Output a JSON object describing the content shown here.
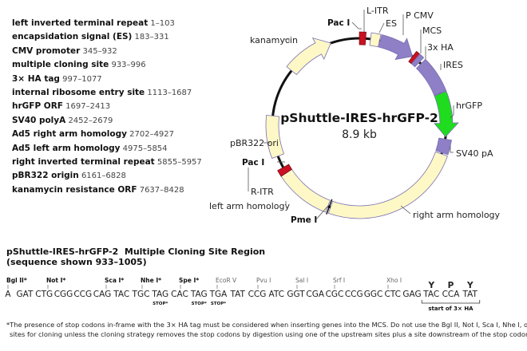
{
  "legend": [
    {
      "name": "left inverted terminal repeat",
      "range": "1–103"
    },
    {
      "name": "encapsidation signal (ES)",
      "range": "183–331"
    },
    {
      "name": "CMV promoter",
      "range": "345–932"
    },
    {
      "name": "multiple cloning site",
      "range": "933–996"
    },
    {
      "name": "3× HA tag",
      "range": "997–1077"
    },
    {
      "name": "internal ribosome entry site",
      "range": "1113–1687"
    },
    {
      "name": "hrGFP ORF",
      "range": "1697–2413"
    },
    {
      "name": "SV40 polyA",
      "range": "2452–2679"
    },
    {
      "name": "Ad5 right arm homology",
      "range": "2702–4927"
    },
    {
      "name": "Ad5 left arm homology",
      "range": "4975–5854"
    },
    {
      "name": "right inverted terminal repeat",
      "range": "5855–5957"
    },
    {
      "name": "pBR322 origin",
      "range": "6161–6828"
    },
    {
      "name": "kanamycin resistance ORF",
      "range": "7637–8428"
    }
  ],
  "map": {
    "title": "pShuttle-IRES-hrGFP-2",
    "size": "8.9 kb",
    "total_bp": 8900,
    "colors": {
      "yellow": "#fdf8c6",
      "purple": "#8e7fc6",
      "green": "#1fdc1f",
      "red": "#cc1122",
      "outline": "#7a6fb0",
      "backbone": "#111111"
    },
    "features": [
      {
        "label": "L-ITR",
        "start": 1,
        "end": 103,
        "color": "red",
        "arrow": false
      },
      {
        "label": "ES",
        "start": 183,
        "end": 331,
        "color": "yellow",
        "arrow": false
      },
      {
        "label": "P CMV",
        "start": 345,
        "end": 932,
        "color": "purple",
        "arrow": true
      },
      {
        "label": "MCS",
        "start": 933,
        "end": 996,
        "color": "red",
        "arrow": false
      },
      {
        "label": "3x HA",
        "start": 997,
        "end": 1077,
        "color": "purple",
        "arrow": false
      },
      {
        "label": "IRES",
        "start": 1113,
        "end": 1687,
        "color": "purple",
        "arrow": false
      },
      {
        "label": "hrGFP",
        "start": 1697,
        "end": 2413,
        "color": "green",
        "arrow": true
      },
      {
        "label": "SV40 pA",
        "start": 2452,
        "end": 2679,
        "color": "purple",
        "arrow": false
      },
      {
        "label": "right arm homology",
        "start": 2702,
        "end": 4927,
        "color": "yellow",
        "arrow": false
      },
      {
        "label": "left arm homology",
        "start": 4975,
        "end": 5854,
        "color": "yellow",
        "arrow": false
      },
      {
        "label": "R-ITR",
        "start": 5855,
        "end": 5957,
        "color": "red",
        "arrow": false
      },
      {
        "label": "pBR322 ori",
        "start": 6161,
        "end": 6828,
        "color": "yellow",
        "arrow": false
      },
      {
        "label": "kanamycin",
        "start": 7637,
        "end": 8428,
        "color": "yellow",
        "arrow": true
      }
    ],
    "sites": {
      "pac_top": "Pac I",
      "pac_bottom": "Pac I",
      "pme": "Pme I",
      "pme_position": 4950
    }
  },
  "mcs": {
    "title": "pShuttle-IRES-hrGFP-2  Multiple Cloning Site Region",
    "subtitle": "(sequence shown 933–1005)",
    "first_base": "A",
    "codons": [
      "GAT",
      "CTG",
      "CGG",
      "CCG",
      "CAG",
      "TAC",
      "TGC",
      "TAG",
      "CAC",
      "TAG",
      "TGA",
      "TAT",
      "CCG",
      "ATC",
      "GGT",
      "CGA",
      "CGC",
      "CCG",
      "GGC",
      "CTC",
      "GAG",
      "TAC",
      "CCA",
      "TAT"
    ],
    "enzymes": [
      {
        "name": "Bgl II*",
        "bold": true
      },
      {
        "name": "Not I*",
        "bold": true
      },
      {
        "name": "Sca I*",
        "bold": true
      },
      {
        "name": "Nhe I*",
        "bold": true
      },
      {
        "name": "Spe I*",
        "bold": true
      },
      {
        "name": "EcoR V",
        "bold": false
      },
      {
        "name": "Pvu I",
        "bold": false
      },
      {
        "name": "Sal I",
        "bold": false
      },
      {
        "name": "Srf I",
        "bold": false
      },
      {
        "name": "Xho I",
        "bold": false
      }
    ],
    "stop_label": "STOP*",
    "amino_acids": [
      "Y",
      "P",
      "Y"
    ],
    "ha_start": "start of 3× HA"
  },
  "footnote": {
    "line1": "*The presence of stop codons in-frame with the 3× HA tag must be considered when inserting genes into the MCS. Do not use the Bgl II, Not I, Sca I, Nhe I, or Spe I",
    "line2": "sites for cloning unless the cloning strategy removes the stop codons by digestion using one of the upstream sites plus a site downstream of the stop codons."
  }
}
